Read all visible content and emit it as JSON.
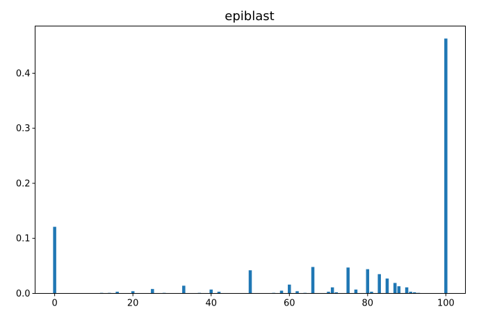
{
  "chart_data": {
    "type": "bar",
    "title": "epiblast",
    "xlabel": "",
    "ylabel": "",
    "xlim": [
      -5,
      105
    ],
    "ylim": [
      0,
      0.4857
    ],
    "xticks": [
      0,
      20,
      40,
      60,
      80,
      100
    ],
    "yticks": [
      0.0,
      0.1,
      0.2,
      0.3,
      0.4
    ],
    "bar_width": 1,
    "bar_color": "#1f77b4",
    "grid": false,
    "x": [
      0,
      12,
      14,
      16,
      20,
      25,
      28,
      33,
      37,
      40,
      42,
      50,
      56,
      58,
      60,
      62,
      64,
      66,
      70,
      71,
      72,
      75,
      77,
      80,
      81,
      83,
      85,
      87,
      88,
      90,
      91,
      92,
      93,
      100
    ],
    "values": [
      0.121,
      0.001,
      0.001,
      0.003,
      0.004,
      0.008,
      0.001,
      0.014,
      0.001,
      0.007,
      0.003,
      0.042,
      0.001,
      0.005,
      0.016,
      0.004,
      0.001,
      0.048,
      0.003,
      0.011,
      0.002,
      0.047,
      0.007,
      0.044,
      0.003,
      0.035,
      0.027,
      0.019,
      0.013,
      0.011,
      0.003,
      0.002,
      0.001,
      0.463
    ]
  }
}
